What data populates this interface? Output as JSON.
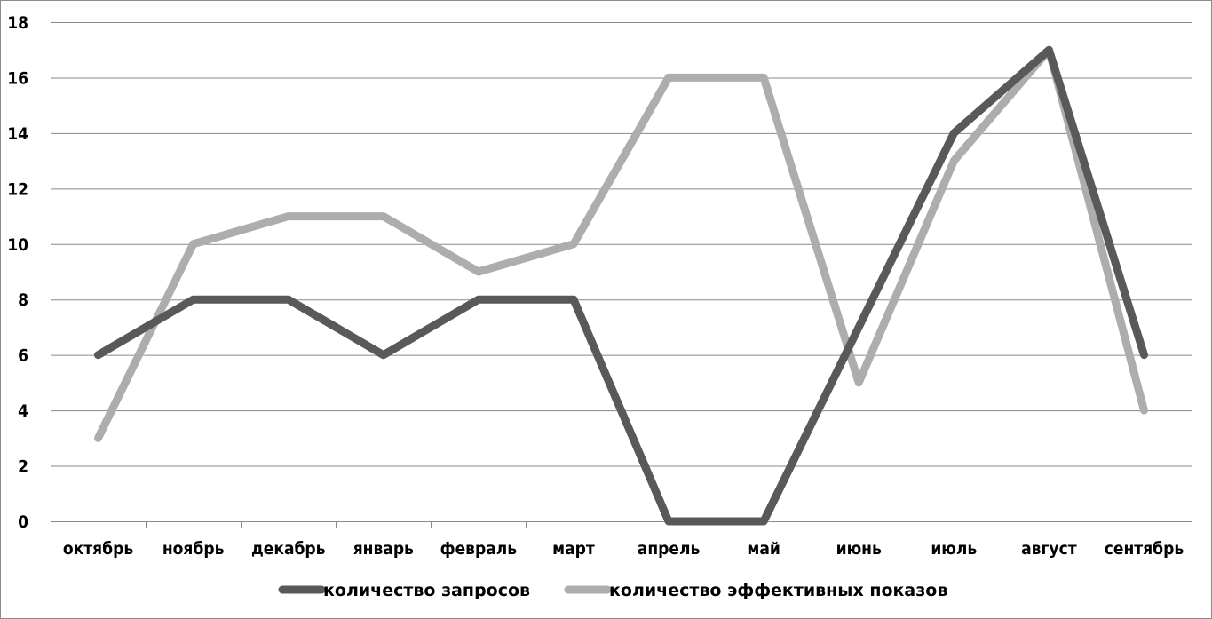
{
  "chart_data": {
    "type": "line",
    "categories": [
      "октябрь",
      "ноябрь",
      "декабрь",
      "январь",
      "февраль",
      "март",
      "апрель",
      "май",
      "июнь",
      "июль",
      "август",
      "сентябрь"
    ],
    "series": [
      {
        "name": "количество запросов",
        "color": "#595959",
        "values": [
          6,
          8,
          8,
          6,
          8,
          8,
          0,
          0,
          7,
          14,
          17,
          6
        ]
      },
      {
        "name": "количество эффективных показов",
        "color": "#adadad",
        "values": [
          3,
          10,
          11,
          11,
          9,
          10,
          16,
          16,
          5,
          13,
          17,
          4
        ]
      }
    ],
    "ylim": [
      0,
      18
    ],
    "yticks": [
      0,
      2,
      4,
      6,
      8,
      10,
      12,
      14,
      16,
      18
    ],
    "grid": true,
    "legend": "bottom"
  }
}
